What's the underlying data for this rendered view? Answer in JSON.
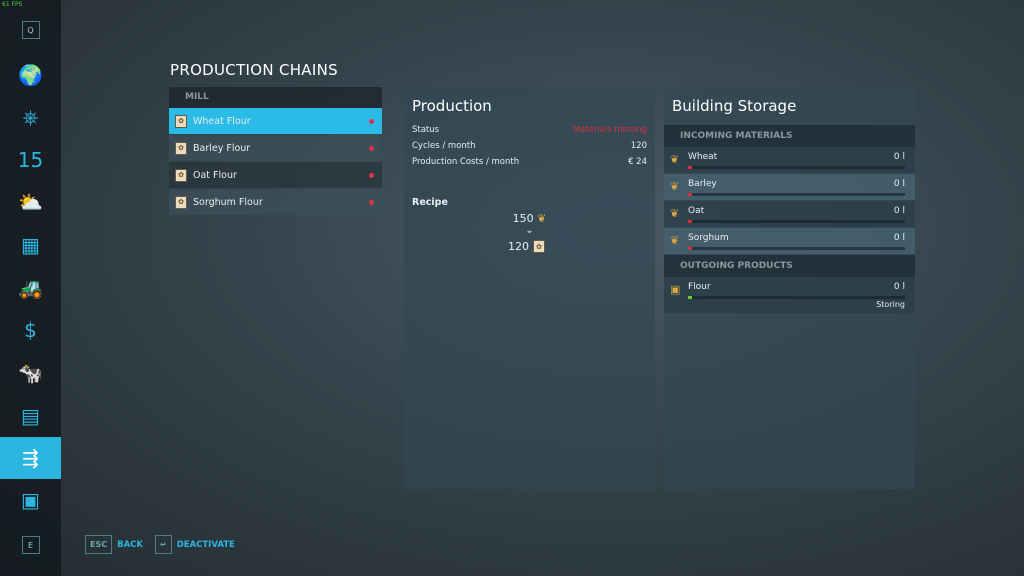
{
  "fps": "61 FPS",
  "sidebar": {
    "top_key": "Q",
    "bottom_key": "E",
    "items": [
      {
        "icon": "map-icon",
        "glyph": "🌍"
      },
      {
        "icon": "steering-wheel-icon",
        "glyph": "⎈"
      },
      {
        "icon": "calendar-icon",
        "glyph": "15"
      },
      {
        "icon": "weather-icon",
        "glyph": "⛅"
      },
      {
        "icon": "statistics-icon",
        "glyph": "▦"
      },
      {
        "icon": "tractor-icon",
        "glyph": "🚜"
      },
      {
        "icon": "finances-icon",
        "glyph": "$"
      },
      {
        "icon": "animals-icon",
        "glyph": "🐄"
      },
      {
        "icon": "contracts-icon",
        "glyph": "▤"
      },
      {
        "icon": "production-chains-icon",
        "glyph": "⇶",
        "active": true
      },
      {
        "icon": "tour-icon",
        "glyph": "▣"
      }
    ]
  },
  "page_title": "PRODUCTION CHAINS",
  "list": {
    "group": "MILL",
    "items": [
      {
        "label": "Wheat Flour",
        "selected": true
      },
      {
        "label": "Barley Flour"
      },
      {
        "label": "Oat Flour"
      },
      {
        "label": "Sorghum Flour"
      }
    ]
  },
  "production": {
    "title": "Production",
    "status_label": "Status",
    "status_value": "Materials missing",
    "cycles_label": "Cycles / month",
    "cycles_value": "120",
    "costs_label": "Production Costs / month",
    "costs_value": "€ 24",
    "recipe_label": "Recipe",
    "input_amount": "150",
    "output_amount": "120"
  },
  "storage": {
    "title": "Building Storage",
    "incoming_label": "INCOMING MATERIALS",
    "incoming": [
      {
        "name": "Wheat",
        "value": "0 l",
        "fill": 0
      },
      {
        "name": "Barley",
        "value": "0 l",
        "fill": 0
      },
      {
        "name": "Oat",
        "value": "0 l",
        "fill": 0
      },
      {
        "name": "Sorghum",
        "value": "0 l",
        "fill": 0
      }
    ],
    "outgoing_label": "OUTGOING PRODUCTS",
    "outgoing": [
      {
        "name": "Flour",
        "value": "0 l",
        "fill": 0,
        "mode": "Storing"
      }
    ]
  },
  "colors": {
    "accent": "#2bb6e0",
    "warning": "#d83040"
  },
  "footer": {
    "back_key": "ESC",
    "back_label": "BACK",
    "deactivate_key": "↵",
    "deactivate_label": "DEACTIVATE"
  }
}
